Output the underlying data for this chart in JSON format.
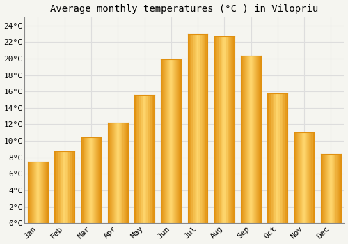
{
  "title": "Average monthly temperatures (°C ) in Vilopriu",
  "months": [
    "Jan",
    "Feb",
    "Mar",
    "Apr",
    "May",
    "Jun",
    "Jul",
    "Aug",
    "Sep",
    "Oct",
    "Nov",
    "Dec"
  ],
  "values": [
    7.5,
    8.7,
    10.4,
    12.2,
    15.6,
    19.9,
    23.0,
    22.7,
    20.3,
    15.8,
    11.0,
    8.4
  ],
  "bar_color_main": "#FDB827",
  "bar_color_light": "#FFD870",
  "bar_color_dark": "#E09010",
  "background_color": "#F5F5F0",
  "plot_bg_color": "#F5F5F0",
  "grid_color": "#DDDDDD",
  "ytick_labels": [
    "0°C",
    "2°C",
    "4°C",
    "6°C",
    "8°C",
    "10°C",
    "12°C",
    "14°C",
    "16°C",
    "18°C",
    "20°C",
    "22°C",
    "24°C"
  ],
  "ytick_values": [
    0,
    2,
    4,
    6,
    8,
    10,
    12,
    14,
    16,
    18,
    20,
    22,
    24
  ],
  "ylim": [
    0,
    25
  ],
  "title_fontsize": 10,
  "tick_fontsize": 8,
  "font_family": "monospace",
  "bar_width": 0.75
}
